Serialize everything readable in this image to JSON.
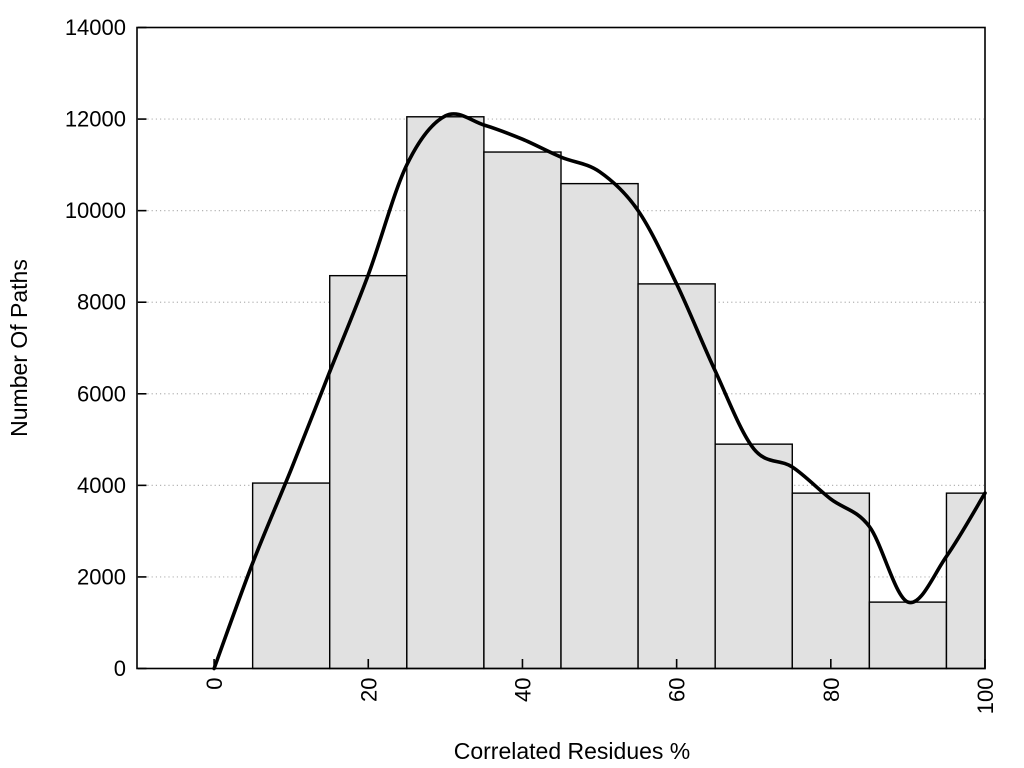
{
  "chart_data": {
    "type": "bar",
    "subtype": "histogram_with_smooth_curve",
    "title": "",
    "xlabel": "Correlated Residues %",
    "ylabel": "Number Of Paths",
    "xlim": [
      -10,
      100
    ],
    "ylim": [
      0,
      14000
    ],
    "grid": "horizontal-dotted",
    "legend": "none",
    "x_ticks": [
      0,
      20,
      40,
      60,
      80,
      100
    ],
    "x_tick_labels": [
      "0",
      "20",
      "40",
      "60",
      "80",
      "100"
    ],
    "x_tick_rotation_deg": -90,
    "y_ticks": [
      0,
      2000,
      4000,
      6000,
      8000,
      10000,
      12000,
      14000
    ],
    "y_tick_labels": [
      "0",
      "2000",
      "4000",
      "6000",
      "8000",
      "10000",
      "12000",
      "14000"
    ],
    "bars": [
      {
        "x0": 5,
        "x1": 15,
        "count": 4050
      },
      {
        "x0": 15,
        "x1": 25,
        "count": 8580
      },
      {
        "x0": 25,
        "x1": 35,
        "count": 12050
      },
      {
        "x0": 35,
        "x1": 45,
        "count": 11280
      },
      {
        "x0": 45,
        "x1": 55,
        "count": 10590
      },
      {
        "x0": 55,
        "x1": 65,
        "count": 8400
      },
      {
        "x0": 65,
        "x1": 75,
        "count": 4900
      },
      {
        "x0": 75,
        "x1": 85,
        "count": 3830
      },
      {
        "x0": 85,
        "x1": 95,
        "count": 1450
      },
      {
        "x0": 95,
        "x1": 100,
        "count": 3830
      }
    ],
    "curve": {
      "name": "smoothed-path-distribution",
      "x": [
        0,
        5,
        10,
        15,
        20,
        25,
        30,
        35,
        40,
        45,
        50,
        55,
        60,
        65,
        70,
        75,
        80,
        85,
        90,
        95,
        100
      ],
      "y": [
        0,
        2300,
        4350,
        6480,
        8600,
        11000,
        12070,
        11870,
        11560,
        11170,
        10850,
        10000,
        8400,
        6500,
        4800,
        4400,
        3700,
        3100,
        1450,
        2450,
        3830
      ]
    },
    "colors": {
      "background": "#ffffff",
      "bar_fill": "#e1e1e1",
      "bar_border": "#000000",
      "curve": "#000000",
      "grid": "#b4b4b4",
      "axis": "#000000",
      "text": "#000000"
    }
  }
}
